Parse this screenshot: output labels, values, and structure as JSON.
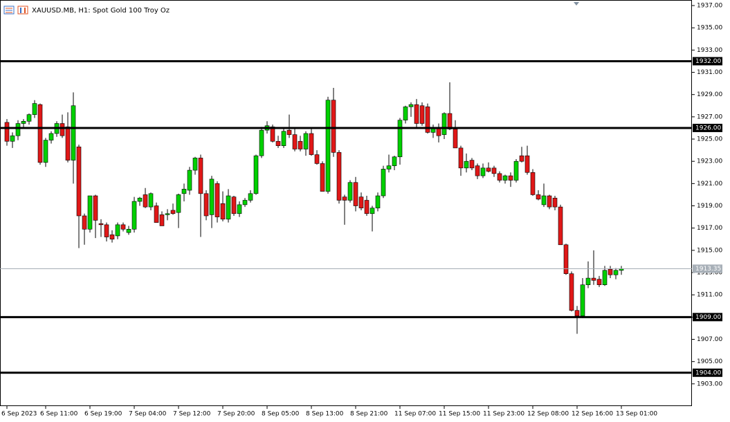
{
  "chart_data": {
    "type": "candlestick",
    "title": "XAUUSD.MB, H1:  Spot Gold 100 Troy Oz",
    "categories": [
      "6 Sep 2023",
      null,
      null,
      null,
      null,
      null,
      null,
      "6 Sep 11:00",
      null,
      null,
      null,
      null,
      null,
      null,
      null,
      "6 Sep 19:00",
      null,
      null,
      null,
      null,
      null,
      null,
      null,
      "7 Sep 04:00",
      null,
      null,
      null,
      null,
      null,
      null,
      null,
      "7 Sep 12:00",
      null,
      null,
      null,
      null,
      null,
      null,
      null,
      "7 Sep 20:00",
      null,
      null,
      null,
      null,
      null,
      null,
      null,
      "8 Sep 05:00",
      null,
      null,
      null,
      null,
      null,
      null,
      null,
      "8 Sep 13:00",
      null,
      null,
      null,
      null,
      null,
      null,
      null,
      "8 Sep 21:00",
      null,
      null,
      null,
      null,
      null,
      null,
      null,
      "11 Sep 07:00",
      null,
      null,
      null,
      null,
      null,
      null,
      null,
      "11 Sep 15:00",
      null,
      null,
      null,
      null,
      null,
      null,
      null,
      "11 Sep 23:00",
      null,
      null,
      null,
      null,
      null,
      null,
      null,
      "12 Sep 08:00",
      null,
      null,
      null,
      null,
      null,
      null,
      null,
      "12 Sep 16:00",
      null,
      null,
      null,
      null,
      null,
      null,
      null,
      "13 Sep 01:00"
    ],
    "open": [
      1926.5,
      1924.8,
      1925.3,
      1926.4,
      1926.6,
      1927.2,
      1928.1,
      1922.9,
      1924.9,
      1925.5,
      1926.4,
      1926.1,
      1923.1,
      1924.3,
      1918.1,
      1916.9,
      1919.9,
      1917.4,
      1917.3,
      1916.4,
      1916.3,
      1917.3,
      1916.6,
      1916.9,
      1919.4,
      1920.0,
      1918.9,
      1919.0,
      1918.2,
      1918.2,
      1918.6,
      1918.4,
      1920.1,
      1920.4,
      1922.2,
      1923.3,
      1920.1,
      1918.2,
      1921.0,
      1919.2,
      1917.8,
      1919.8,
      1918.3,
      1919.1,
      1919.5,
      1920.1,
      1923.5,
      1925.8,
      1926.1,
      1924.8,
      1924.4,
      1925.8,
      1925.4,
      1924.8,
      1924.1,
      1925.5,
      1923.6,
      1922.8,
      1920.3,
      1928.5,
      1923.8,
      1919.8,
      1919.5,
      1921.1,
      1919.8,
      1919.5,
      1918.3,
      1918.8,
      1919.9,
      1922.3,
      1922.6,
      1923.4,
      1926.7,
      1927.9,
      1928.1,
      1928.0,
      1927.9,
      1925.6,
      1926.0,
      1925.4,
      1927.3,
      1925.9,
      1924.2,
      1922.4,
      1923.1,
      1922.6,
      1921.7,
      1922.4,
      1922.4,
      1921.9,
      1921.3,
      1921.7,
      1921.3,
      1923.5,
      1923.5,
      1922.0,
      1920.0,
      1919.1,
      1919.9,
      1919.7,
      1918.9,
      1915.5,
      1912.9,
      1909.6,
      1909.1,
      1911.9,
      1912.5,
      1912.4,
      1911.9,
      1913.3,
      1912.8,
      1913.2
    ],
    "high": [
      1926.8,
      1925.6,
      1926.7,
      1926.8,
      1927.3,
      1928.5,
      1928.2,
      1925.1,
      1925.7,
      1926.6,
      1927.2,
      1927.4,
      1929.2,
      1924.5,
      1918.3,
      1919.9,
      1920.0,
      1917.8,
      1917.5,
      1916.8,
      1917.5,
      1917.5,
      1917.2,
      1919.8,
      1919.8,
      1920.6,
      1920.2,
      1919.3,
      1918.5,
      1918.7,
      1919.2,
      1920.1,
      1921.0,
      1922.5,
      1923.4,
      1923.6,
      1920.4,
      1921.7,
      1921.2,
      1920.3,
      1920.5,
      1919.9,
      1919.4,
      1919.7,
      1920.4,
      1923.6,
      1926.1,
      1926.6,
      1926.3,
      1925.3,
      1925.9,
      1927.2,
      1926.0,
      1925.3,
      1925.7,
      1925.9,
      1924.0,
      1923.0,
      1928.8,
      1929.6,
      1924.0,
      1920.0,
      1921.3,
      1921.6,
      1920.2,
      1919.9,
      1919.0,
      1920.2,
      1922.6,
      1923.6,
      1923.5,
      1926.9,
      1928.0,
      1928.3,
      1928.6,
      1928.3,
      1928.2,
      1926.3,
      1926.4,
      1927.4,
      1930.1,
      1926.7,
      1924.4,
      1923.7,
      1923.3,
      1922.8,
      1922.8,
      1922.9,
      1922.6,
      1922.1,
      1921.8,
      1922.0,
      1923.2,
      1924.3,
      1924.4,
      1922.3,
      1920.4,
      1921.0,
      1920.0,
      1919.9,
      1919.1,
      1915.6,
      1913.1,
      1910.0,
      1912.5,
      1914.0,
      1915.0,
      1912.7,
      1913.6,
      1913.6,
      1913.4,
      1913.6
    ],
    "low": [
      1924.4,
      1924.2,
      1924.9,
      1926.0,
      1926.3,
      1926.9,
      1922.7,
      1922.5,
      1924.6,
      1925.2,
      1925.1,
      1922.9,
      1921.0,
      1915.2,
      1915.5,
      1916.6,
      1916.1,
      1916.2,
      1915.8,
      1915.7,
      1916.0,
      1916.7,
      1916.4,
      1916.6,
      1919.0,
      1918.8,
      1918.6,
      1917.5,
      1917.2,
      1917.7,
      1918.2,
      1917.0,
      1919.4,
      1920.0,
      1921.8,
      1916.2,
      1917.7,
      1917.0,
      1917.5,
      1917.6,
      1917.5,
      1918.1,
      1918.0,
      1918.9,
      1919.3,
      1920.0,
      1923.3,
      1925.5,
      1924.7,
      1924.2,
      1924.2,
      1925.1,
      1923.9,
      1923.9,
      1923.5,
      1923.5,
      1922.7,
      1920.3,
      1920.1,
      1923.4,
      1919.2,
      1917.3,
      1919.3,
      1918.5,
      1918.6,
      1918.1,
      1916.7,
      1918.5,
      1919.7,
      1922.0,
      1922.2,
      1922.7,
      1926.4,
      1927.0,
      1925.9,
      1926.2,
      1925.5,
      1925.1,
      1924.7,
      1925.0,
      1925.8,
      1924.2,
      1921.7,
      1922.0,
      1922.2,
      1921.4,
      1921.5,
      1922.0,
      1921.6,
      1921.1,
      1921.0,
      1920.7,
      1921.1,
      1922.9,
      1921.8,
      1919.9,
      1919.5,
      1918.9,
      1918.7,
      1918.6,
      1915.5,
      1912.8,
      1909.5,
      1907.5,
      1908.9,
      1911.6,
      1911.9,
      1911.7,
      1911.8,
      1912.5,
      1912.4,
      1912.8
    ],
    "close": [
      1924.8,
      1925.3,
      1926.4,
      1926.6,
      1927.2,
      1928.2,
      1922.9,
      1924.9,
      1925.5,
      1926.4,
      1925.3,
      1923.1,
      1928.0,
      1918.1,
      1916.9,
      1919.9,
      1917.7,
      1917.3,
      1916.2,
      1916.0,
      1917.3,
      1916.9,
      1916.9,
      1919.4,
      1919.7,
      1918.9,
      1920.1,
      1917.5,
      1917.2,
      1918.3,
      1918.3,
      1920.0,
      1920.5,
      1922.2,
      1923.3,
      1920.1,
      1918.1,
      1921.4,
      1918.0,
      1917.8,
      1919.9,
      1918.3,
      1919.1,
      1919.5,
      1920.1,
      1923.5,
      1925.8,
      1926.2,
      1924.8,
      1924.4,
      1925.7,
      1925.4,
      1924.1,
      1924.1,
      1925.5,
      1923.6,
      1922.8,
      1920.3,
      1928.5,
      1923.8,
      1919.5,
      1919.5,
      1921.1,
      1919.0,
      1918.8,
      1918.3,
      1918.8,
      1919.9,
      1922.3,
      1922.6,
      1923.4,
      1926.7,
      1927.9,
      1928.1,
      1926.4,
      1926.4,
      1925.6,
      1926.0,
      1925.3,
      1927.3,
      1925.9,
      1924.2,
      1922.4,
      1923.0,
      1922.4,
      1921.7,
      1922.4,
      1922.1,
      1921.9,
      1921.3,
      1921.7,
      1921.3,
      1923.0,
      1923.0,
      1922.0,
      1920.0,
      1919.6,
      1919.9,
      1918.9,
      1918.9,
      1915.5,
      1912.9,
      1909.6,
      1909.1,
      1911.9,
      1912.5,
      1912.3,
      1911.9,
      1913.2,
      1912.8,
      1913.2,
      1913.35
    ],
    "up_color": "#00d000",
    "down_color": "#e01818",
    "wick_color": "#000000",
    "ylim": [
      1901.0,
      1937.5
    ],
    "yticks": [
      {
        "value": 1937,
        "label": "1937.00"
      },
      {
        "value": 1935,
        "label": "1935.00"
      },
      {
        "value": 1933,
        "label": "1933.00"
      },
      {
        "value": 1931,
        "label": "1931.00"
      },
      {
        "value": 1929,
        "label": "1929.00"
      },
      {
        "value": 1927,
        "label": "1927.00"
      },
      {
        "value": 1925,
        "label": "1925.00"
      },
      {
        "value": 1923,
        "label": "1923.00"
      },
      {
        "value": 1921,
        "label": "1921.00"
      },
      {
        "value": 1919,
        "label": "1919.00"
      },
      {
        "value": 1917,
        "label": "1917.00"
      },
      {
        "value": 1915,
        "label": "1915.00"
      },
      {
        "value": 1913,
        "label": "1913.00"
      },
      {
        "value": 1911,
        "label": "1911.00"
      },
      {
        "value": 1909,
        "label": "1909.00"
      },
      {
        "value": 1907,
        "label": "1907.00"
      },
      {
        "value": 1905,
        "label": "1905.00"
      },
      {
        "value": 1903,
        "label": "1903.00"
      }
    ],
    "levels": [
      {
        "value": 1932,
        "label": "1932.00"
      },
      {
        "value": 1926,
        "label": "1926.00"
      },
      {
        "value": 1909,
        "label": "1909.00"
      },
      {
        "value": 1904,
        "label": "1904.00"
      }
    ],
    "last_price": 1913.35
  }
}
